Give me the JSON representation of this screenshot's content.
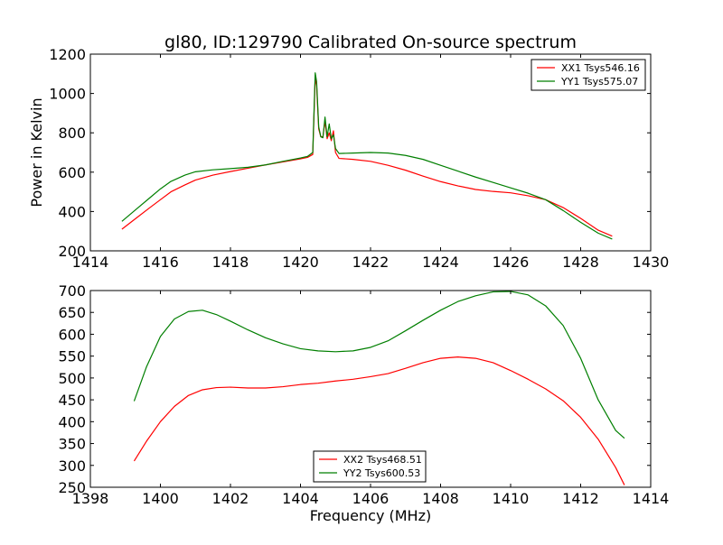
{
  "figure": {
    "title": "gl80, ID:129790 Calibrated On-source spectrum",
    "xlabel": "Frequency (MHz)"
  },
  "chart_data": [
    {
      "type": "line",
      "title": "gl80, ID:129790 Calibrated On-source spectrum",
      "xlabel": "",
      "ylabel": "Power in Kelvin",
      "xlim": [
        1414,
        1430
      ],
      "ylim": [
        200,
        1200
      ],
      "xticks": [
        1414,
        1416,
        1418,
        1420,
        1422,
        1424,
        1426,
        1428,
        1430
      ],
      "yticks": [
        200,
        400,
        600,
        800,
        1000,
        1200
      ],
      "legend_position": "top-right",
      "grid": false,
      "series": [
        {
          "name": "XX1 Tsys546.16",
          "color": "#ff0000",
          "x": [
            1414.9,
            1415.3,
            1415.7,
            1416.0,
            1416.3,
            1416.7,
            1417.0,
            1417.5,
            1418.0,
            1418.5,
            1419.0,
            1419.5,
            1420.0,
            1420.2,
            1420.35,
            1420.42,
            1420.46,
            1420.52,
            1420.58,
            1420.64,
            1420.7,
            1420.76,
            1420.82,
            1420.88,
            1420.94,
            1421.0,
            1421.1,
            1421.5,
            1422.0,
            1422.5,
            1423.0,
            1423.5,
            1424.0,
            1424.5,
            1425.0,
            1425.5,
            1426.0,
            1426.5,
            1427.0,
            1427.5,
            1428.0,
            1428.5,
            1428.9
          ],
          "values": [
            310,
            365,
            420,
            460,
            500,
            535,
            560,
            585,
            603,
            620,
            637,
            652,
            668,
            675,
            690,
            1080,
            1040,
            820,
            780,
            780,
            860,
            770,
            800,
            760,
            810,
            700,
            670,
            665,
            655,
            635,
            610,
            580,
            552,
            530,
            512,
            502,
            495,
            480,
            460,
            420,
            365,
            305,
            275
          ]
        },
        {
          "name": "YY1 Tsys575.07",
          "color": "#007f00",
          "x": [
            1414.9,
            1415.3,
            1415.7,
            1416.0,
            1416.3,
            1416.7,
            1417.0,
            1417.5,
            1418.0,
            1418.5,
            1419.0,
            1419.5,
            1420.0,
            1420.2,
            1420.35,
            1420.42,
            1420.46,
            1420.52,
            1420.58,
            1420.64,
            1420.7,
            1420.76,
            1420.82,
            1420.88,
            1420.94,
            1421.0,
            1421.1,
            1421.5,
            1422.0,
            1422.5,
            1423.0,
            1423.5,
            1424.0,
            1424.5,
            1425.0,
            1425.5,
            1426.0,
            1426.5,
            1427.0,
            1427.5,
            1428.0,
            1428.5,
            1428.9
          ],
          "values": [
            350,
            410,
            470,
            515,
            553,
            585,
            602,
            612,
            618,
            625,
            637,
            655,
            672,
            680,
            700,
            1105,
            1060,
            830,
            780,
            775,
            880,
            780,
            845,
            770,
            790,
            720,
            695,
            697,
            700,
            697,
            685,
            665,
            635,
            605,
            575,
            548,
            520,
            493,
            460,
            405,
            345,
            290,
            260
          ]
        }
      ]
    },
    {
      "type": "line",
      "xlabel": "Frequency (MHz)",
      "ylabel": "",
      "xlim": [
        1398,
        1414
      ],
      "ylim": [
        250,
        700
      ],
      "xticks": [
        1398,
        1400,
        1402,
        1404,
        1406,
        1408,
        1410,
        1412,
        1414
      ],
      "yticks": [
        250,
        300,
        350,
        400,
        450,
        500,
        550,
        600,
        650,
        700
      ],
      "legend_position": "lower-center",
      "grid": false,
      "series": [
        {
          "name": "XX2 Tsys468.51",
          "color": "#ff0000",
          "x": [
            1399.25,
            1399.6,
            1400.0,
            1400.4,
            1400.8,
            1401.2,
            1401.6,
            1402.0,
            1402.5,
            1403.0,
            1403.5,
            1404.0,
            1404.5,
            1405.0,
            1405.5,
            1406.0,
            1406.5,
            1407.0,
            1407.5,
            1408.0,
            1408.5,
            1409.0,
            1409.5,
            1410.0,
            1410.5,
            1411.0,
            1411.5,
            1412.0,
            1412.5,
            1413.0,
            1413.25
          ],
          "values": [
            310,
            355,
            400,
            435,
            460,
            473,
            478,
            479,
            477,
            477,
            480,
            485,
            488,
            493,
            497,
            503,
            510,
            522,
            535,
            545,
            548,
            545,
            535,
            517,
            497,
            475,
            448,
            410,
            360,
            295,
            255
          ]
        },
        {
          "name": "YY2 Tsys600.53",
          "color": "#007f00",
          "x": [
            1399.25,
            1399.6,
            1400.0,
            1400.4,
            1400.8,
            1401.2,
            1401.6,
            1402.0,
            1402.5,
            1403.0,
            1403.5,
            1404.0,
            1404.5,
            1405.0,
            1405.5,
            1406.0,
            1406.5,
            1407.0,
            1407.5,
            1408.0,
            1408.5,
            1409.0,
            1409.5,
            1410.0,
            1410.5,
            1411.0,
            1411.5,
            1412.0,
            1412.5,
            1413.0,
            1413.25
          ],
          "values": [
            447,
            525,
            595,
            635,
            652,
            655,
            645,
            630,
            610,
            592,
            578,
            567,
            562,
            560,
            562,
            570,
            585,
            608,
            632,
            655,
            675,
            688,
            697,
            698,
            690,
            665,
            620,
            545,
            450,
            380,
            362
          ]
        }
      ]
    }
  ]
}
